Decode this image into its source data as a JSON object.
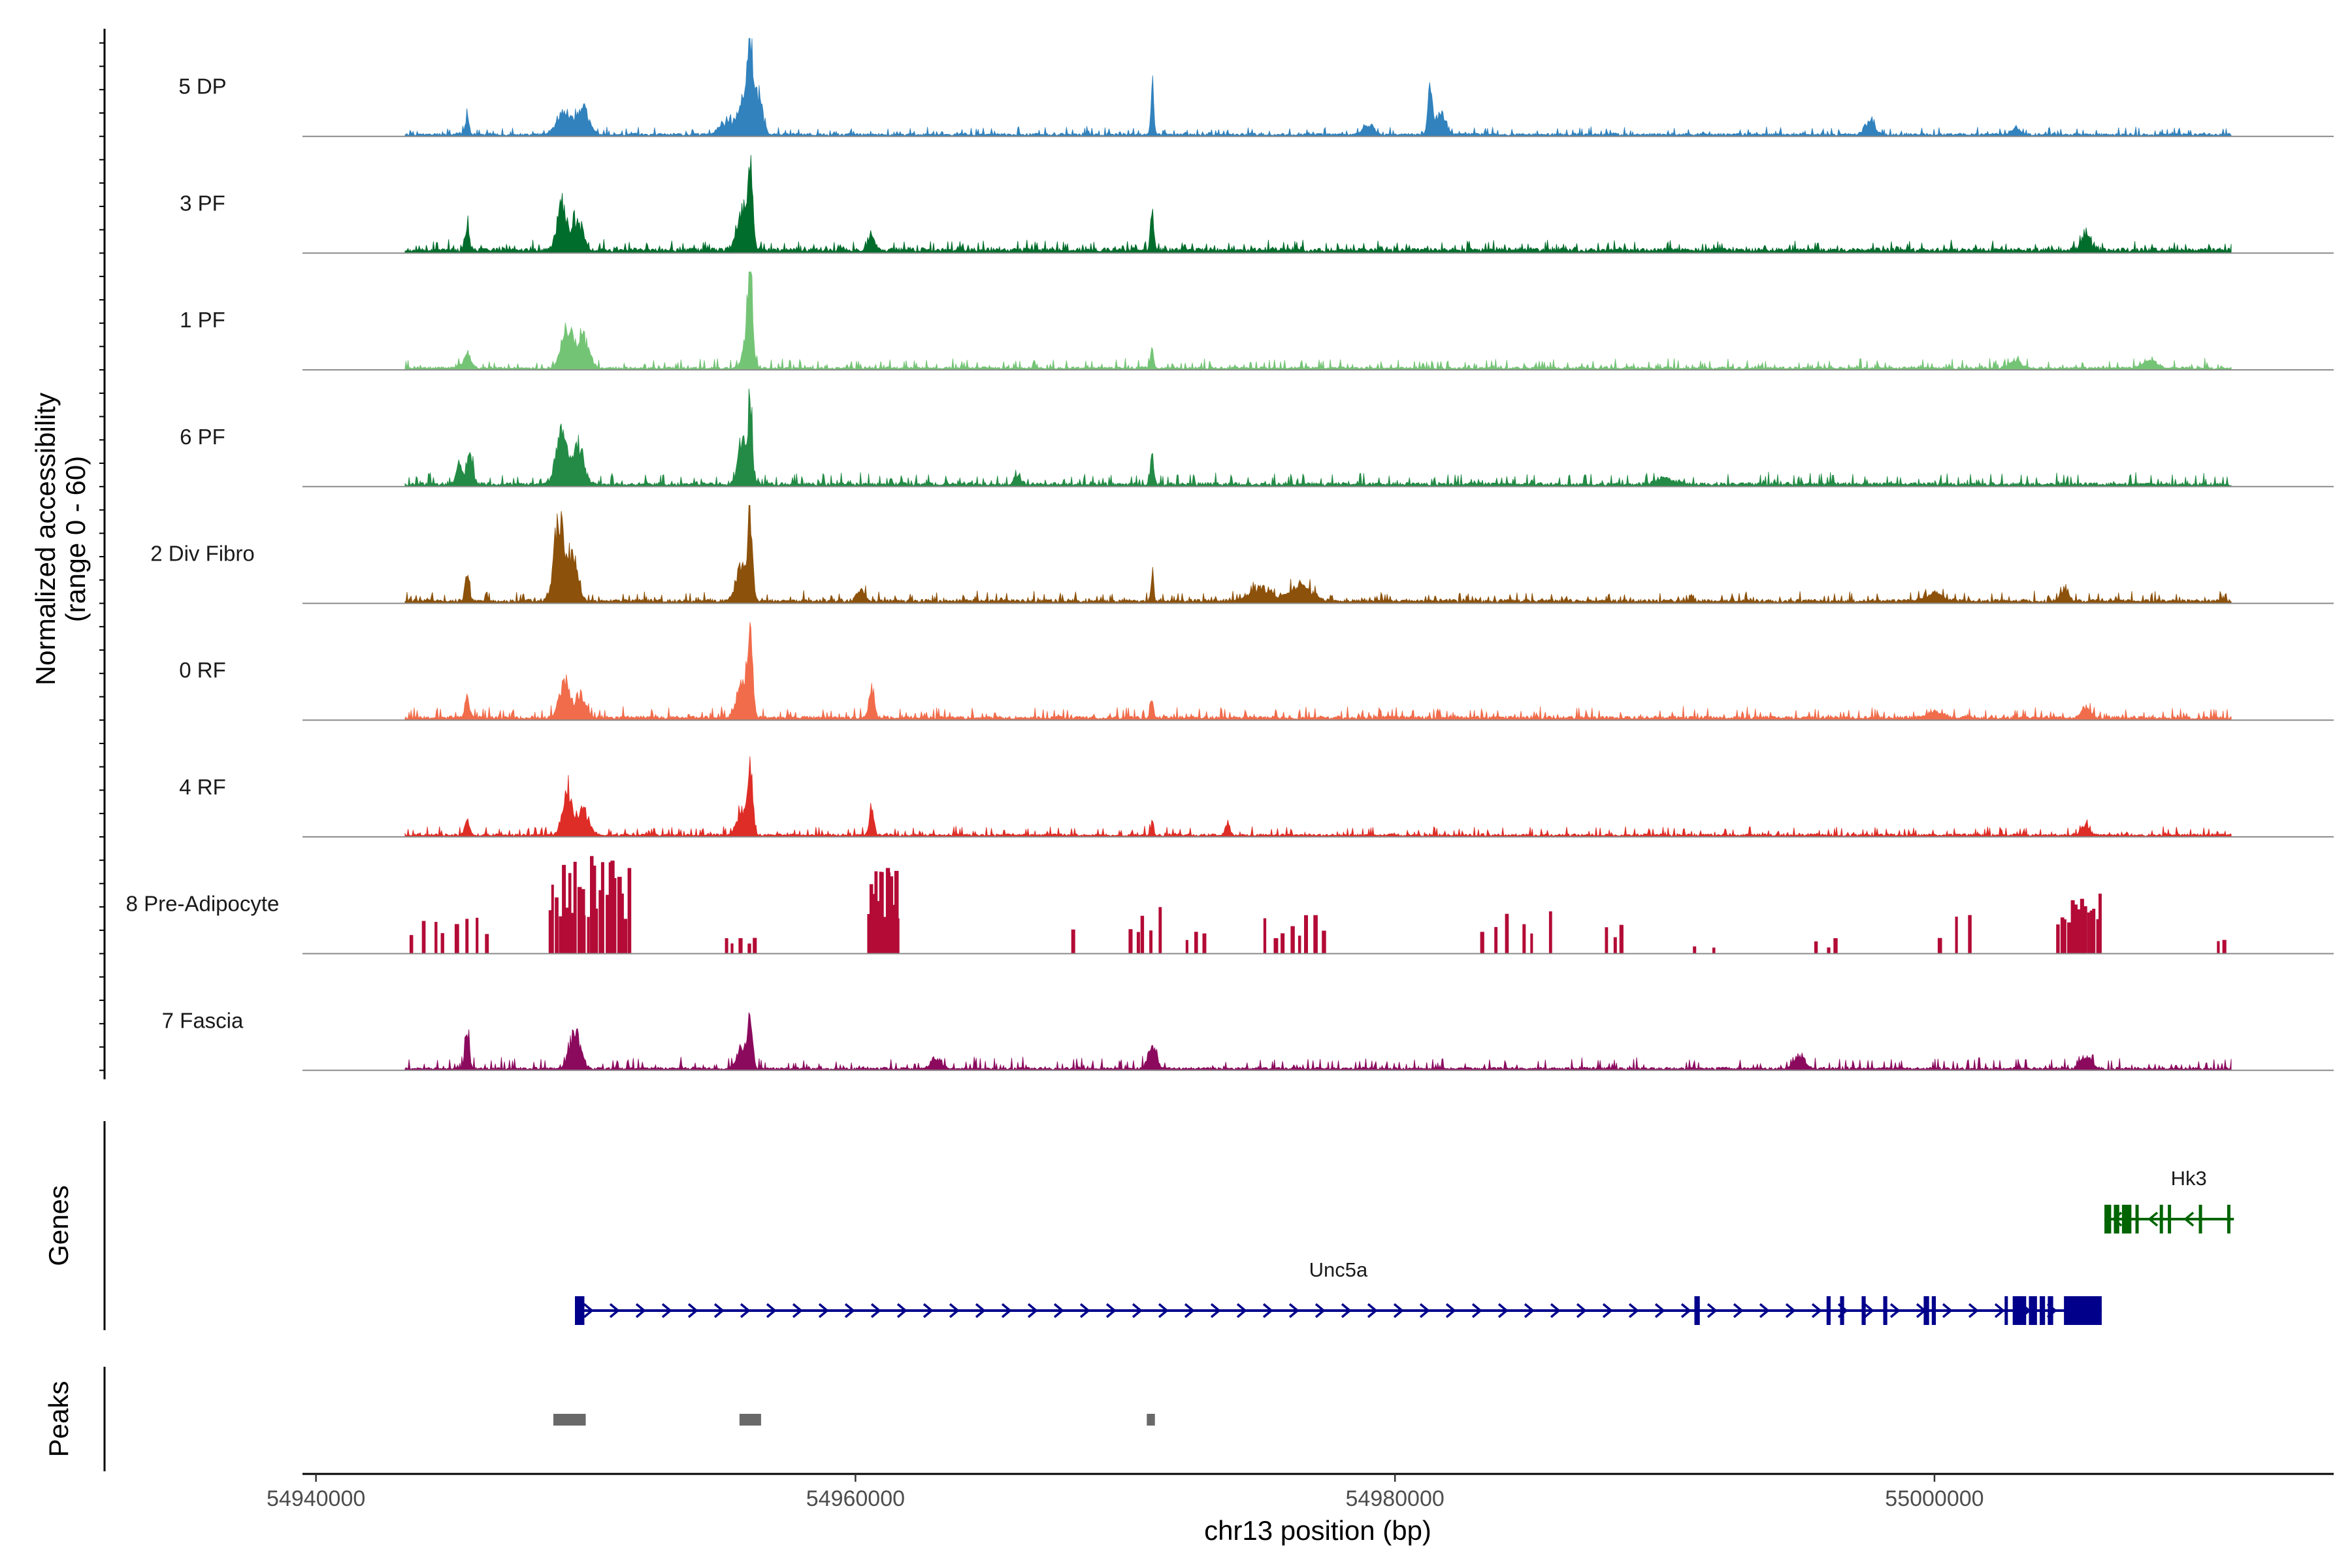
{
  "chart_data": {
    "type": "area",
    "title": "",
    "chromosome": "chr13",
    "xlabel": "chr13 position (bp)",
    "ylabel": "Normalized accessibility",
    "ylabel_range": "(range 0 - 60)",
    "xlim": [
      54939500,
      55014800
    ],
    "ylim": [
      0,
      60
    ],
    "x_ticks": [
      54940000,
      54960000,
      54980000,
      55000000
    ],
    "x_tick_labels": [
      "54940000",
      "54960000",
      "54980000",
      "55000000"
    ],
    "signal_span": [
      54943300,
      55011000
    ],
    "tracks": [
      {
        "name": "5 DP",
        "color": "#3182bd",
        "baseline": 1.5,
        "noise": 2.0,
        "seed": 11,
        "peaks": [
          [
            54945600,
            12,
            80
          ],
          [
            54949200,
            18,
            260
          ],
          [
            54949900,
            20,
            220
          ],
          [
            54955300,
            10,
            300
          ],
          [
            54955900,
            28,
            200
          ],
          [
            54956100,
            56,
            90
          ],
          [
            54956400,
            30,
            150
          ],
          [
            54971000,
            42,
            50
          ],
          [
            54979000,
            8,
            200
          ],
          [
            54981300,
            38,
            80
          ],
          [
            54981700,
            18,
            160
          ],
          [
            54997600,
            10,
            180
          ],
          [
            55003000,
            6,
            150
          ]
        ]
      },
      {
        "name": "3 PF",
        "color": "#006d2c",
        "baseline": 2.5,
        "noise": 2.5,
        "seed": 23,
        "peaks": [
          [
            54945600,
            18,
            80
          ],
          [
            54949100,
            35,
            180
          ],
          [
            54949700,
            22,
            200
          ],
          [
            54955800,
            30,
            200
          ],
          [
            54956100,
            58,
            90
          ],
          [
            54960600,
            12,
            120
          ],
          [
            54971000,
            30,
            60
          ],
          [
            55005600,
            14,
            150
          ]
        ]
      },
      {
        "name": "1 PF",
        "color": "#74c476",
        "baseline": 1.5,
        "noise": 2.5,
        "seed": 37,
        "peaks": [
          [
            54945600,
            10,
            150
          ],
          [
            54949300,
            32,
            200
          ],
          [
            54949900,
            24,
            220
          ],
          [
            54956000,
            30,
            150
          ],
          [
            54956100,
            62,
            80
          ],
          [
            54971000,
            18,
            50
          ],
          [
            55003000,
            6,
            200
          ],
          [
            55008000,
            5,
            300
          ]
        ]
      },
      {
        "name": "6 PF",
        "color": "#238b45",
        "baseline": 2.0,
        "noise": 3.0,
        "seed": 53,
        "peaks": [
          [
            54945300,
            15,
            120
          ],
          [
            54945700,
            22,
            100
          ],
          [
            54949100,
            38,
            200
          ],
          [
            54949700,
            30,
            220
          ],
          [
            54955800,
            36,
            150
          ],
          [
            54956100,
            63,
            80
          ],
          [
            54971000,
            22,
            60
          ],
          [
            54966000,
            7,
            120
          ],
          [
            54990000,
            5,
            300
          ]
        ]
      },
      {
        "name": "2 Div Fibro",
        "color": "#8c510a",
        "baseline": 2.0,
        "noise": 2.5,
        "seed": 71,
        "peaks": [
          [
            54945600,
            20,
            80
          ],
          [
            54949000,
            60,
            180
          ],
          [
            54949500,
            35,
            200
          ],
          [
            54955800,
            28,
            200
          ],
          [
            54956100,
            63,
            80
          ],
          [
            54960200,
            10,
            150
          ],
          [
            54971000,
            22,
            50
          ],
          [
            54975000,
            10,
            400
          ],
          [
            54976500,
            12,
            400
          ],
          [
            55000000,
            6,
            300
          ],
          [
            55004800,
            8,
            150
          ]
        ]
      },
      {
        "name": "0 RF",
        "color": "#f16c4b",
        "baseline": 2.0,
        "noise": 2.8,
        "seed": 89,
        "peaks": [
          [
            54945600,
            16,
            80
          ],
          [
            54949200,
            28,
            180
          ],
          [
            54949800,
            18,
            200
          ],
          [
            54956100,
            66,
            90
          ],
          [
            54955800,
            25,
            200
          ],
          [
            54960600,
            25,
            90
          ],
          [
            54971000,
            18,
            50
          ],
          [
            55005600,
            8,
            150
          ],
          [
            55000000,
            5,
            300
          ]
        ]
      },
      {
        "name": "4 RF",
        "color": "#de2d26",
        "baseline": 1.5,
        "noise": 2.3,
        "seed": 97,
        "peaks": [
          [
            54945600,
            12,
            80
          ],
          [
            54949300,
            36,
            160
          ],
          [
            54949900,
            22,
            200
          ],
          [
            54956100,
            46,
            90
          ],
          [
            54955800,
            18,
            200
          ],
          [
            54960600,
            18,
            90
          ],
          [
            54971000,
            12,
            50
          ],
          [
            54973800,
            10,
            80
          ],
          [
            55005600,
            8,
            150
          ]
        ]
      }
    ],
    "sparse_track": {
      "name": "8 Pre-Adipocyte",
      "color": "#b30b36",
      "seed": 131,
      "clusters": [
        [
          54943400,
          54946600,
          25,
          8
        ],
        [
          54948600,
          54951600,
          60,
          26
        ],
        [
          54955100,
          54956400,
          12,
          5
        ],
        [
          54960400,
          54961600,
          58,
          14
        ],
        [
          54968000,
          54968100,
          18,
          1
        ],
        [
          54970000,
          54971400,
          33,
          5
        ],
        [
          54972000,
          54973200,
          14,
          3
        ],
        [
          54975000,
          54977600,
          25,
          8
        ],
        [
          54983000,
          54986000,
          26,
          6
        ],
        [
          54987700,
          54988500,
          24,
          3
        ],
        [
          54991000,
          54992000,
          10,
          2
        ],
        [
          54995500,
          54996600,
          10,
          3
        ],
        [
          55000000,
          55001600,
          24,
          3
        ],
        [
          55004500,
          55006200,
          38,
          14
        ],
        [
          55010400,
          55010800,
          10,
          2
        ]
      ]
    },
    "fascia_track": {
      "name": "7 Fascia",
      "color": "#8b0a5e",
      "baseline": 1.5,
      "noise": 3.0,
      "seed": 151,
      "peaks": [
        [
          54945600,
          28,
          80
        ],
        [
          54949600,
          30,
          200
        ],
        [
          54956100,
          36,
          90
        ],
        [
          54955800,
          18,
          180
        ],
        [
          54971000,
          18,
          150
        ],
        [
          54963000,
          8,
          200
        ],
        [
          54995000,
          10,
          200
        ],
        [
          55005600,
          10,
          200
        ]
      ]
    },
    "genes": [
      {
        "name": "Unc5a",
        "color": "#00008b",
        "start": 54949600,
        "end": 55006200,
        "strand": "+",
        "exons": [
          [
            54949600,
            54949950
          ],
          [
            54991100,
            54991300
          ],
          [
            54996000,
            54996150
          ],
          [
            54996500,
            54996650
          ],
          [
            54997300,
            54997450
          ],
          [
            54998100,
            54998250
          ],
          [
            54999600,
            54999800
          ],
          [
            54999900,
            55000050
          ],
          [
            55002600,
            55002700
          ],
          [
            55002900,
            55003400
          ],
          [
            55003500,
            55003800
          ],
          [
            55003900,
            55004100
          ],
          [
            55004200,
            55004400
          ],
          [
            55004800,
            55006200
          ]
        ]
      },
      {
        "name": "Hk3",
        "color": "#006400",
        "start": 55006300,
        "end": 55011100,
        "strand": "-",
        "exons": [
          [
            55006300,
            55006550
          ],
          [
            55006650,
            55006850
          ],
          [
            55006950,
            55007300
          ],
          [
            55007450,
            55007550
          ],
          [
            55008350,
            55008450
          ],
          [
            55008650,
            55008750
          ],
          [
            55009800,
            55009900
          ],
          [
            55010850,
            55010950
          ]
        ]
      }
    ],
    "peaks_track": {
      "name": "Peaks",
      "color": "#696969",
      "regions": [
        [
          54948800,
          54950000
        ],
        [
          54955700,
          54956500
        ],
        [
          54970800,
          54971100
        ]
      ]
    },
    "panels": [
      "Genes",
      "Peaks"
    ]
  }
}
